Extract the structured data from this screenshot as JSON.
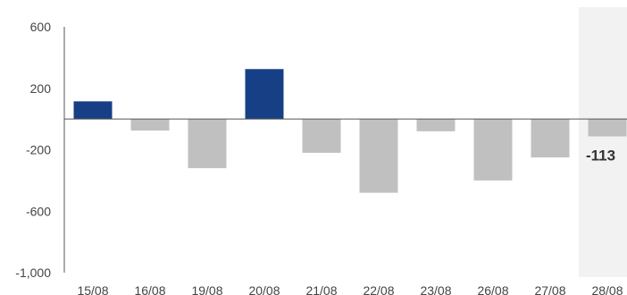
{
  "chart_data": {
    "type": "bar",
    "title": "",
    "xlabel": "",
    "ylabel": "",
    "ylim": [
      -1000,
      600
    ],
    "yticks": [
      600,
      200,
      -200,
      -600,
      -1000
    ],
    "ytick_labels": [
      "600",
      "200",
      "-200",
      "-600",
      "-1,000"
    ],
    "categories": [
      "15/08",
      "16/08",
      "19/08",
      "20/08",
      "21/08",
      "22/08",
      "23/08",
      "26/08",
      "27/08",
      "28/08"
    ],
    "values": [
      115,
      -75,
      -320,
      325,
      -220,
      -480,
      -80,
      -400,
      -250,
      -113
    ],
    "highlighted_category": "28/08",
    "highlight_value_label": "-113",
    "grid": false,
    "colors": {
      "positive": "#173f86",
      "negative": "#c0c0c0",
      "highlight_band": "#f2f2f2",
      "axis": "#555555"
    }
  }
}
